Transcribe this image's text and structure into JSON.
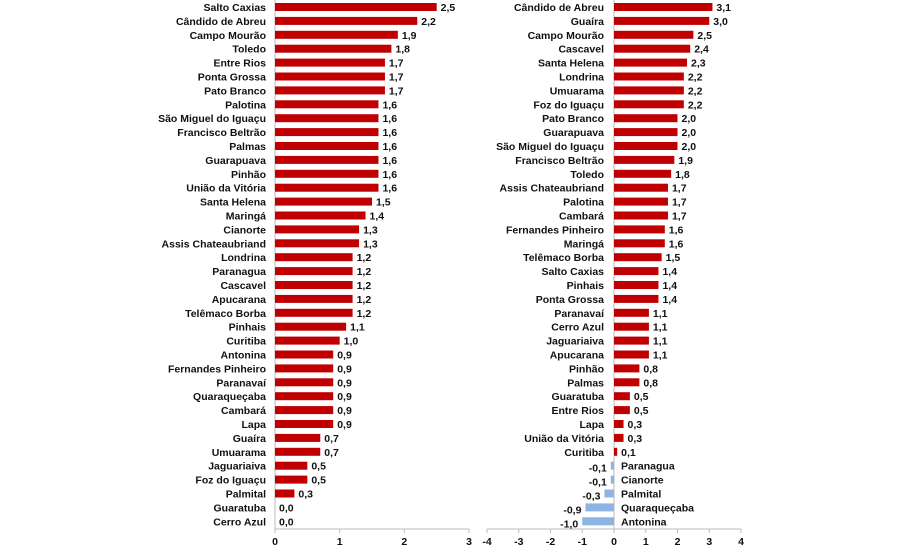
{
  "chart_data": [
    {
      "type": "bar",
      "orientation": "horizontal",
      "xlim": [
        0,
        3
      ],
      "xticks": [
        "0",
        "1",
        "2",
        "3"
      ],
      "bar_color": "#C00000",
      "categories": [
        "Salto Caxias",
        "Cândido de Abreu",
        "Campo Mourão",
        "Toledo",
        "Entre Rios",
        "Ponta Grossa",
        "Pato Branco",
        "Palotina",
        "São Miguel do Iguaçu",
        "Francisco Beltrão",
        "Palmas",
        "Guarapuava",
        "Pinhão",
        "União da Vitória",
        "Santa Helena",
        "Maringá",
        "Cianorte",
        "Assis Chateaubriand",
        "Londrina",
        "Paranagua",
        "Cascavel",
        "Apucarana",
        "Telêmaco Borba",
        "Pinhais",
        "Curitiba",
        "Antonina",
        "Fernandes Pinheiro",
        "Paranavaí",
        "Quaraqueçaba",
        "Cambará",
        "Lapa",
        "Guaíra",
        "Umuarama",
        "Jaguariaiva",
        "Foz do Iguaçu",
        "Palmital",
        "Guaratuba",
        "Cerro Azul"
      ],
      "values": [
        2.5,
        2.2,
        1.9,
        1.8,
        1.7,
        1.7,
        1.7,
        1.6,
        1.6,
        1.6,
        1.6,
        1.6,
        1.6,
        1.6,
        1.5,
        1.4,
        1.3,
        1.3,
        1.2,
        1.2,
        1.2,
        1.2,
        1.2,
        1.1,
        1.0,
        0.9,
        0.9,
        0.9,
        0.9,
        0.9,
        0.9,
        0.7,
        0.7,
        0.5,
        0.5,
        0.3,
        0.0,
        0.0
      ],
      "labels": [
        "2,5",
        "2,2",
        "1,9",
        "1,8",
        "1,7",
        "1,7",
        "1,7",
        "1,6",
        "1,6",
        "1,6",
        "1,6",
        "1,6",
        "1,6",
        "1,6",
        "1,5",
        "1,4",
        "1,3",
        "1,3",
        "1,2",
        "1,2",
        "1,2",
        "1,2",
        "1,2",
        "1,1",
        "1,0",
        "0,9",
        "0,9",
        "0,9",
        "0,9",
        "0,9",
        "0,9",
        "0,7",
        "0,7",
        "0,5",
        "0,5",
        "0,3",
        "0,0",
        "0,0"
      ]
    },
    {
      "type": "bar",
      "orientation": "horizontal",
      "xlim": [
        -4,
        4
      ],
      "xticks": [
        "-4",
        "-3",
        "-2",
        "-1",
        "0",
        "1",
        "2",
        "3",
        "4"
      ],
      "bar_color": "#C00000",
      "negative_color": "#8DB4E2",
      "categories": [
        "Cândido de Abreu",
        "Guaíra",
        "Campo Mourão",
        "Cascavel",
        "Santa Helena",
        "Londrina",
        "Umuarama",
        "Foz do Iguaçu",
        "Pato Branco",
        "Guarapuava",
        "São Miguel do Iguaçu",
        "Francisco Beltrão",
        "Toledo",
        "Assis Chateaubriand",
        "Palotina",
        "Cambará",
        "Fernandes Pinheiro",
        "Maringá",
        "Telêmaco Borba",
        "Salto Caxias",
        "Pinhais",
        "Ponta Grossa",
        "Paranavaí",
        "Cerro Azul",
        "Jaguariaiva",
        "Apucarana",
        "Pinhão",
        "Palmas",
        "Guaratuba",
        "Entre Rios",
        "Lapa",
        "União da Vitória",
        "Curitiba",
        "Paranagua",
        "Cianorte",
        "Palmital",
        "Quaraqueçaba",
        "Antonina"
      ],
      "values": [
        3.1,
        3.0,
        2.5,
        2.4,
        2.3,
        2.2,
        2.2,
        2.2,
        2.0,
        2.0,
        2.0,
        1.9,
        1.8,
        1.7,
        1.7,
        1.7,
        1.6,
        1.6,
        1.5,
        1.4,
        1.4,
        1.4,
        1.1,
        1.1,
        1.1,
        1.1,
        0.8,
        0.8,
        0.5,
        0.5,
        0.3,
        0.3,
        0.1,
        -0.1,
        -0.1,
        -0.3,
        -0.9,
        -1.0
      ],
      "labels": [
        "3,1",
        "3,0",
        "2,5",
        "2,4",
        "2,3",
        "2,2",
        "2,2",
        "2,2",
        "2,0",
        "2,0",
        "2,0",
        "1,9",
        "1,8",
        "1,7",
        "1,7",
        "1,7",
        "1,6",
        "1,6",
        "1,5",
        "1,4",
        "1,4",
        "1,4",
        "1,1",
        "1,1",
        "1,1",
        "1,1",
        "0,8",
        "0,8",
        "0,5",
        "0,5",
        "0,3",
        "0,3",
        "0,1",
        "-0,1",
        "-0,1",
        "-0,3",
        "-0,9",
        "-1,0"
      ]
    }
  ]
}
